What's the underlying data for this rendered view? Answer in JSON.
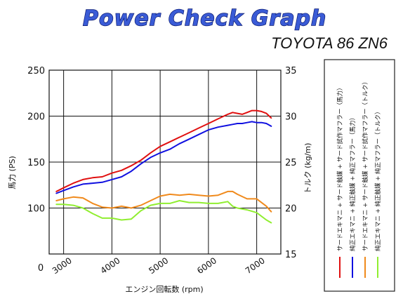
{
  "banner": {
    "title": "Power Check Graph",
    "subtitle": "TOYOTA 86 ZN6"
  },
  "colors": {
    "red": "#e01010",
    "blue": "#1010e0",
    "orange": "#f08a1c",
    "green": "#90ee30",
    "banner_fill": "#3a5bd6",
    "banner_stroke": "#0a1a70"
  },
  "chart_data": {
    "type": "line",
    "xlabel": "エンジン回転数 (rpm)",
    "ylabel": "馬力 (PS)",
    "y2label": "トルク (kg/m)",
    "xlim": [
      2700,
      7500
    ],
    "ylim": [
      50,
      250
    ],
    "y2lim": [
      15,
      35
    ],
    "x_ticks": [
      3000,
      4000,
      5000,
      6000,
      7000
    ],
    "y_ticks": [
      100,
      150,
      200,
      250
    ],
    "y_bottom_label": "0",
    "y2_ticks": [
      15,
      20,
      25,
      30,
      35
    ],
    "grid": true,
    "legend_position": "right",
    "series": [
      {
        "name": "サードエキマニ + サード触媒 + サード試作マフラー（馬力）",
        "axis": "left",
        "color": "#e01010",
        "x": [
          2850,
          3000,
          3200,
          3400,
          3600,
          3800,
          4000,
          4200,
          4400,
          4600,
          4800,
          5000,
          5200,
          5400,
          5600,
          5800,
          6000,
          6200,
          6400,
          6500,
          6600,
          6700,
          6800,
          6900,
          7000,
          7100,
          7200,
          7300
        ],
        "y": [
          118,
          122,
          127,
          131,
          133,
          134,
          138,
          141,
          146,
          152,
          160,
          167,
          172,
          177,
          182,
          187,
          192,
          197,
          202,
          204,
          203,
          202,
          204,
          206,
          206,
          205,
          203,
          198
        ]
      },
      {
        "name": "純正エキマニ + 純正触媒 + 純正マフラー（馬力）",
        "axis": "left",
        "color": "#1010e0",
        "x": [
          2850,
          3000,
          3200,
          3400,
          3600,
          3800,
          4000,
          4200,
          4400,
          4600,
          4800,
          5000,
          5200,
          5400,
          5600,
          5800,
          6000,
          6200,
          6400,
          6500,
          6600,
          6700,
          6800,
          6900,
          7000,
          7100,
          7200,
          7300
        ],
        "y": [
          116,
          119,
          123,
          126,
          127,
          128,
          131,
          134,
          140,
          148,
          155,
          160,
          164,
          170,
          175,
          180,
          185,
          188,
          190,
          191,
          192,
          192,
          193,
          194,
          193,
          193,
          192,
          189
        ]
      },
      {
        "name": "サードエキマニ + サード触媒 + サード試作マフラー（トルク）",
        "axis": "right",
        "color": "#f08a1c",
        "x": [
          2850,
          3000,
          3200,
          3400,
          3600,
          3800,
          4000,
          4200,
          4400,
          4600,
          4800,
          5000,
          5200,
          5400,
          5600,
          5800,
          6000,
          6200,
          6400,
          6500,
          6600,
          6800,
          7000,
          7200,
          7300
        ],
        "y": [
          20.8,
          21.0,
          21.2,
          21.1,
          20.5,
          20.1,
          20.0,
          20.2,
          20.0,
          20.3,
          20.8,
          21.3,
          21.5,
          21.4,
          21.5,
          21.4,
          21.3,
          21.4,
          21.8,
          21.8,
          21.5,
          21.0,
          21.0,
          20.2,
          19.6
        ]
      },
      {
        "name": "純正エキマニ + 純正触媒 + 純正マフラー（トルク）",
        "axis": "right",
        "color": "#90ee30",
        "x": [
          2850,
          3000,
          3200,
          3400,
          3600,
          3800,
          4000,
          4200,
          4400,
          4600,
          4800,
          5000,
          5200,
          5400,
          5600,
          5800,
          6000,
          6200,
          6400,
          6500,
          6600,
          6800,
          7000,
          7200,
          7300
        ],
        "y": [
          20.4,
          20.4,
          20.3,
          20.0,
          19.4,
          18.9,
          18.9,
          18.7,
          18.8,
          19.7,
          20.3,
          20.5,
          20.5,
          20.8,
          20.6,
          20.6,
          20.5,
          20.5,
          20.7,
          20.2,
          20.0,
          19.8,
          19.5,
          18.7,
          18.4
        ]
      }
    ]
  }
}
